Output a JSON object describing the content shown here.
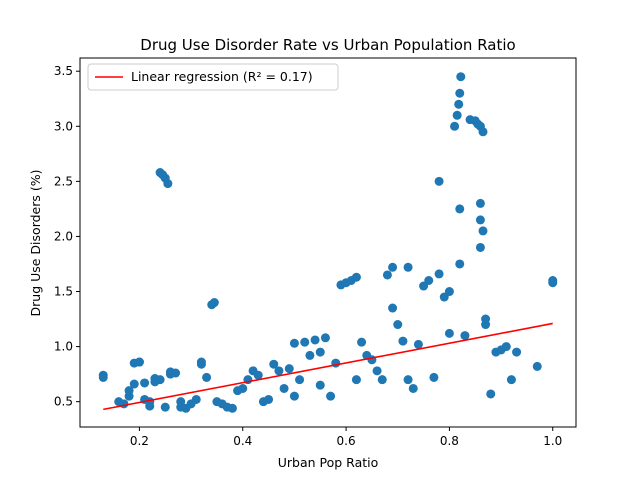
{
  "chart_data": {
    "type": "scatter",
    "title": "Drug Use Disorder Rate vs Urban Population Ratio",
    "xlabel": "Urban Pop Ratio",
    "ylabel": "Drug Use Disorders (%)",
    "xlim": [
      0.085,
      1.045
    ],
    "ylim": [
      0.27,
      3.62
    ],
    "xticks": [
      "0.2",
      "0.4",
      "0.6",
      "0.8",
      "1.0"
    ],
    "yticks": [
      "0.5",
      "1.0",
      "1.5",
      "2.0",
      "2.5",
      "3.0",
      "3.5"
    ],
    "grid": false,
    "legend_position": "top-left",
    "marker_color": "#1f77b4",
    "line_color": "#ff0000",
    "series": [
      {
        "type": "points",
        "values_note": "",
        "points": [
          [
            0.13,
            0.74
          ],
          [
            0.13,
            0.72
          ],
          [
            0.16,
            0.5
          ],
          [
            0.17,
            0.48
          ],
          [
            0.18,
            0.55
          ],
          [
            0.18,
            0.6
          ],
          [
            0.19,
            0.66
          ],
          [
            0.19,
            0.85
          ],
          [
            0.2,
            0.86
          ],
          [
            0.2,
            0.86
          ],
          [
            0.21,
            0.67
          ],
          [
            0.21,
            0.52
          ],
          [
            0.22,
            0.46
          ],
          [
            0.22,
            0.5
          ],
          [
            0.23,
            0.68
          ],
          [
            0.23,
            0.71
          ],
          [
            0.24,
            0.7
          ],
          [
            0.24,
            2.58
          ],
          [
            0.245,
            2.56
          ],
          [
            0.25,
            2.53
          ],
          [
            0.255,
            2.48
          ],
          [
            0.25,
            0.45
          ],
          [
            0.26,
            0.75
          ],
          [
            0.26,
            0.77
          ],
          [
            0.27,
            0.76
          ],
          [
            0.28,
            0.5
          ],
          [
            0.28,
            0.45
          ],
          [
            0.29,
            0.44
          ],
          [
            0.3,
            0.48
          ],
          [
            0.31,
            0.52
          ],
          [
            0.32,
            0.84
          ],
          [
            0.32,
            0.86
          ],
          [
            0.33,
            0.72
          ],
          [
            0.34,
            1.38
          ],
          [
            0.345,
            1.4
          ],
          [
            0.35,
            0.5
          ],
          [
            0.36,
            0.48
          ],
          [
            0.37,
            0.45
          ],
          [
            0.38,
            0.44
          ],
          [
            0.39,
            0.6
          ],
          [
            0.4,
            0.62
          ],
          [
            0.41,
            0.7
          ],
          [
            0.42,
            0.78
          ],
          [
            0.43,
            0.74
          ],
          [
            0.44,
            0.5
          ],
          [
            0.45,
            0.52
          ],
          [
            0.46,
            0.84
          ],
          [
            0.47,
            0.78
          ],
          [
            0.48,
            0.62
          ],
          [
            0.49,
            0.8
          ],
          [
            0.5,
            0.55
          ],
          [
            0.5,
            1.03
          ],
          [
            0.51,
            0.7
          ],
          [
            0.52,
            1.04
          ],
          [
            0.53,
            0.92
          ],
          [
            0.54,
            1.06
          ],
          [
            0.55,
            0.65
          ],
          [
            0.55,
            0.95
          ],
          [
            0.56,
            1.08
          ],
          [
            0.57,
            0.55
          ],
          [
            0.58,
            0.85
          ],
          [
            0.59,
            1.56
          ],
          [
            0.6,
            1.58
          ],
          [
            0.61,
            1.6
          ],
          [
            0.62,
            1.63
          ],
          [
            0.62,
            0.7
          ],
          [
            0.63,
            1.04
          ],
          [
            0.64,
            0.92
          ],
          [
            0.65,
            0.88
          ],
          [
            0.66,
            0.78
          ],
          [
            0.67,
            0.7
          ],
          [
            0.68,
            1.65
          ],
          [
            0.69,
            1.72
          ],
          [
            0.69,
            1.35
          ],
          [
            0.7,
            1.2
          ],
          [
            0.71,
            1.05
          ],
          [
            0.72,
            0.7
          ],
          [
            0.72,
            1.72
          ],
          [
            0.73,
            0.62
          ],
          [
            0.74,
            1.02
          ],
          [
            0.75,
            1.55
          ],
          [
            0.76,
            1.6
          ],
          [
            0.77,
            0.72
          ],
          [
            0.78,
            2.5
          ],
          [
            0.78,
            1.66
          ],
          [
            0.79,
            1.45
          ],
          [
            0.8,
            1.5
          ],
          [
            0.8,
            1.12
          ],
          [
            0.81,
            3.0
          ],
          [
            0.815,
            3.1
          ],
          [
            0.818,
            3.2
          ],
          [
            0.82,
            3.3
          ],
          [
            0.822,
            3.45
          ],
          [
            0.82,
            2.25
          ],
          [
            0.82,
            1.75
          ],
          [
            0.83,
            1.1
          ],
          [
            0.84,
            3.06
          ],
          [
            0.85,
            3.05
          ],
          [
            0.855,
            3.02
          ],
          [
            0.86,
            3.0
          ],
          [
            0.865,
            2.95
          ],
          [
            0.86,
            2.3
          ],
          [
            0.86,
            2.15
          ],
          [
            0.865,
            2.05
          ],
          [
            0.86,
            1.9
          ],
          [
            0.87,
            1.2
          ],
          [
            0.87,
            1.25
          ],
          [
            0.88,
            0.57
          ],
          [
            0.89,
            0.95
          ],
          [
            0.9,
            0.97
          ],
          [
            0.91,
            1.0
          ],
          [
            0.92,
            0.7
          ],
          [
            0.93,
            0.95
          ],
          [
            0.97,
            0.82
          ],
          [
            1.0,
            1.58
          ],
          [
            1.0,
            1.6
          ]
        ]
      }
    ],
    "regression": {
      "label": "Linear regression (R² = 0.17)",
      "x": [
        0.13,
        1.0
      ],
      "y": [
        0.43,
        1.21
      ]
    }
  }
}
